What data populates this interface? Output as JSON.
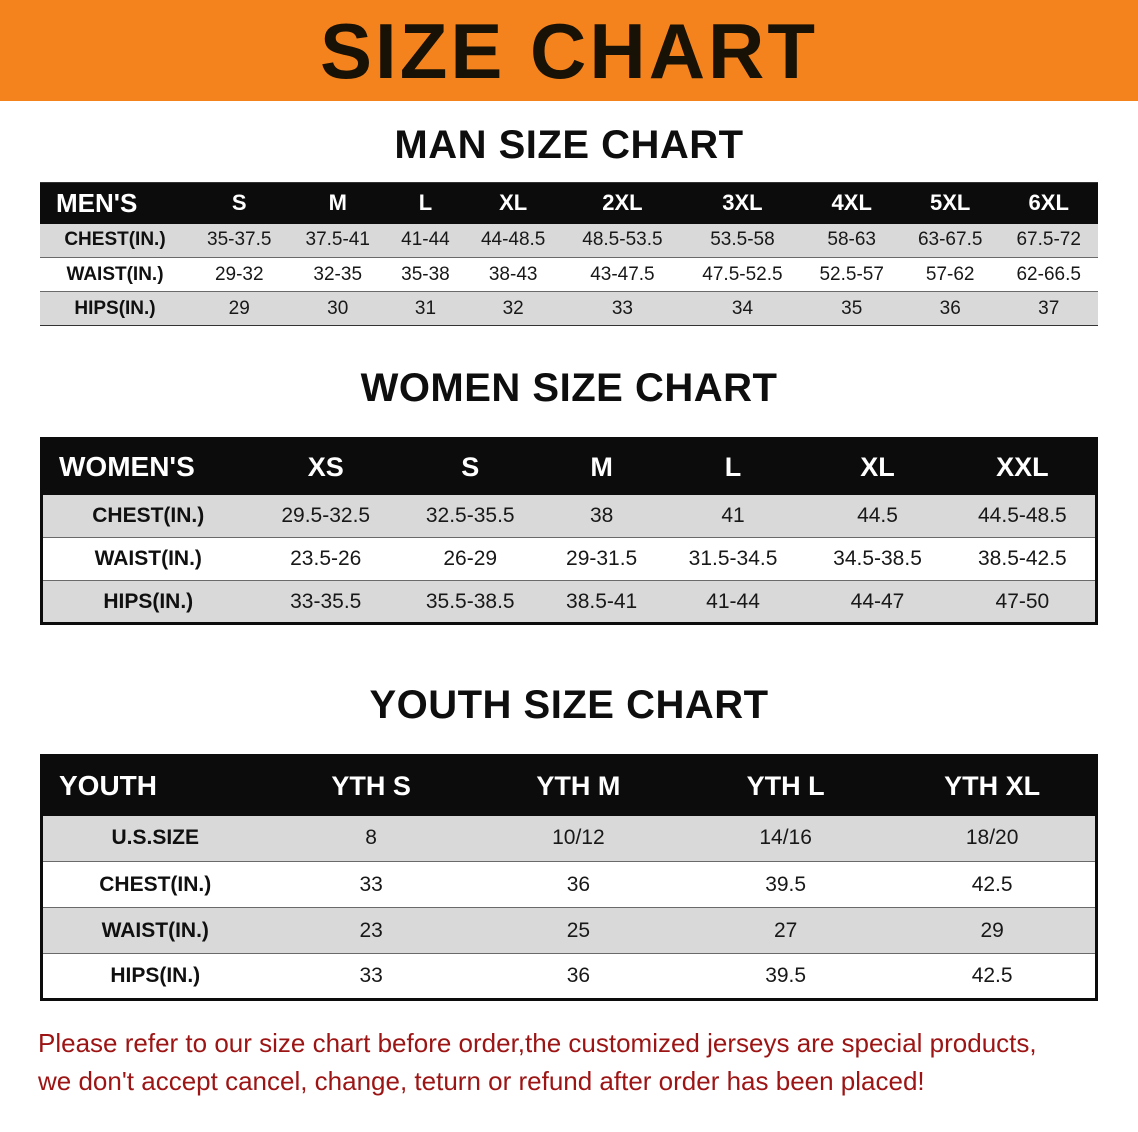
{
  "banner": {
    "title": "SIZE CHART",
    "bg_color": "#f5831d",
    "text_color": "#181105"
  },
  "colors": {
    "table_header_bg": "#0c0c0c",
    "row_stripe": "#d9d9d9",
    "disclaimer_text": "#9c1414"
  },
  "sections": [
    {
      "heading": "MAN SIZE CHART",
      "table": {
        "header": [
          "MEN'S",
          "S",
          "M",
          "L",
          "XL",
          "2XL",
          "3XL",
          "4XL",
          "5XL",
          "6XL"
        ],
        "rows": [
          [
            "CHEST(IN.)",
            "35-37.5",
            "37.5-41",
            "41-44",
            "44-48.5",
            "48.5-53.5",
            "53.5-58",
            "58-63",
            "63-67.5",
            "67.5-72"
          ],
          [
            "WAIST(IN.)",
            "29-32",
            "32-35",
            "35-38",
            "38-43",
            "43-47.5",
            "47.5-52.5",
            "52.5-57",
            "57-62",
            "62-66.5"
          ],
          [
            "HIPS(IN.)",
            "29",
            "30",
            "31",
            "32",
            "33",
            "34",
            "35",
            "36",
            "37"
          ]
        ]
      }
    },
    {
      "heading": "WOMEN SIZE CHART",
      "table": {
        "header": [
          "WOMEN'S",
          "XS",
          "S",
          "M",
          "L",
          "XL",
          "XXL"
        ],
        "rows": [
          [
            "CHEST(IN.)",
            "29.5-32.5",
            "32.5-35.5",
            "38",
            "41",
            "44.5",
            "44.5-48.5"
          ],
          [
            "WAIST(IN.)",
            "23.5-26",
            "26-29",
            "29-31.5",
            "31.5-34.5",
            "34.5-38.5",
            "38.5-42.5"
          ],
          [
            "HIPS(IN.)",
            "33-35.5",
            "35.5-38.5",
            "38.5-41",
            "41-44",
            "44-47",
            "47-50"
          ]
        ]
      }
    },
    {
      "heading": "YOUTH SIZE CHART",
      "table": {
        "header": [
          "YOUTH",
          "YTH S",
          "YTH M",
          "YTH L",
          "YTH XL"
        ],
        "rows": [
          [
            "U.S.SIZE",
            "8",
            "10/12",
            "14/16",
            "18/20"
          ],
          [
            "CHEST(IN.)",
            "33",
            "36",
            "39.5",
            "42.5"
          ],
          [
            "WAIST(IN.)",
            "23",
            "25",
            "27",
            "29"
          ],
          [
            "HIPS(IN.)",
            "33",
            "36",
            "39.5",
            "42.5"
          ]
        ]
      }
    }
  ],
  "disclaimer": {
    "line1": "Please refer to our size chart before order,the customized jerseys are special products,",
    "line2": "we don't accept cancel, change, teturn or refund after order has been placed!"
  }
}
